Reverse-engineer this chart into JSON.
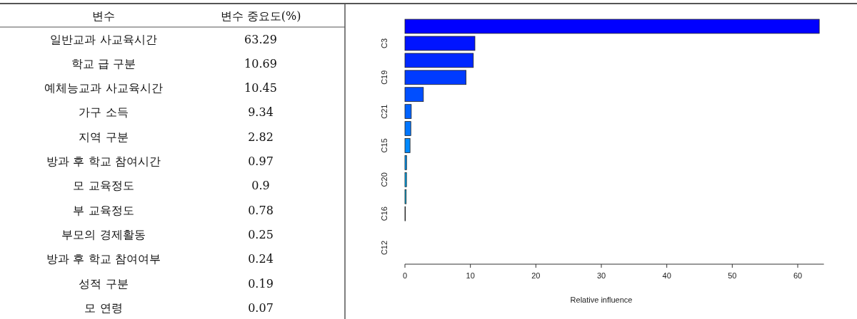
{
  "chart_data": [
    {
      "type": "other",
      "annotations": [
        "변수",
        "변수 중요도(%)",
        "일반교과 사교육시간",
        "63.29",
        "학교 급 구분",
        "10.69",
        "예체능교과 사교육시간",
        "10.45",
        "가구 소득",
        "9.34",
        "지역 구분",
        "2.82",
        "방과 후 학교 참여시간",
        "0.97",
        "모 교육정도",
        "0.9",
        "부 교육정도",
        "0.78",
        "부모의 경제활동",
        "0.25",
        "방과 후 학교 참여여부",
        "0.24",
        "성적 구분",
        "0.19",
        "모 연령",
        "0.07"
      ]
    },
    {
      "type": "bar",
      "orientation": "horizontal",
      "xlabel": "Relative influence",
      "categories": [
        null,
        "C3",
        null,
        "C19",
        null,
        "C21",
        null,
        "C15",
        null,
        "C20",
        null,
        "C16",
        null,
        "C12"
      ],
      "values": [
        63.29,
        10.69,
        10.45,
        9.34,
        2.82,
        0.97,
        0.9,
        0.78,
        0.25,
        0.24,
        0.19,
        0.07,
        0,
        0
      ],
      "colors": [
        "#0000ff",
        "#0014ff",
        "#0027ff",
        "#003bff",
        "#004eff",
        "#0062ff",
        "#0076ff",
        "#0089ff",
        "#009dff",
        "#00b1ff",
        "#00c4ff",
        "#00d8ff",
        "#00ebff",
        "#00ffff"
      ],
      "xlim": [
        0,
        64
      ],
      "xticks": [
        0,
        10,
        20,
        30,
        40,
        50,
        60
      ]
    }
  ]
}
